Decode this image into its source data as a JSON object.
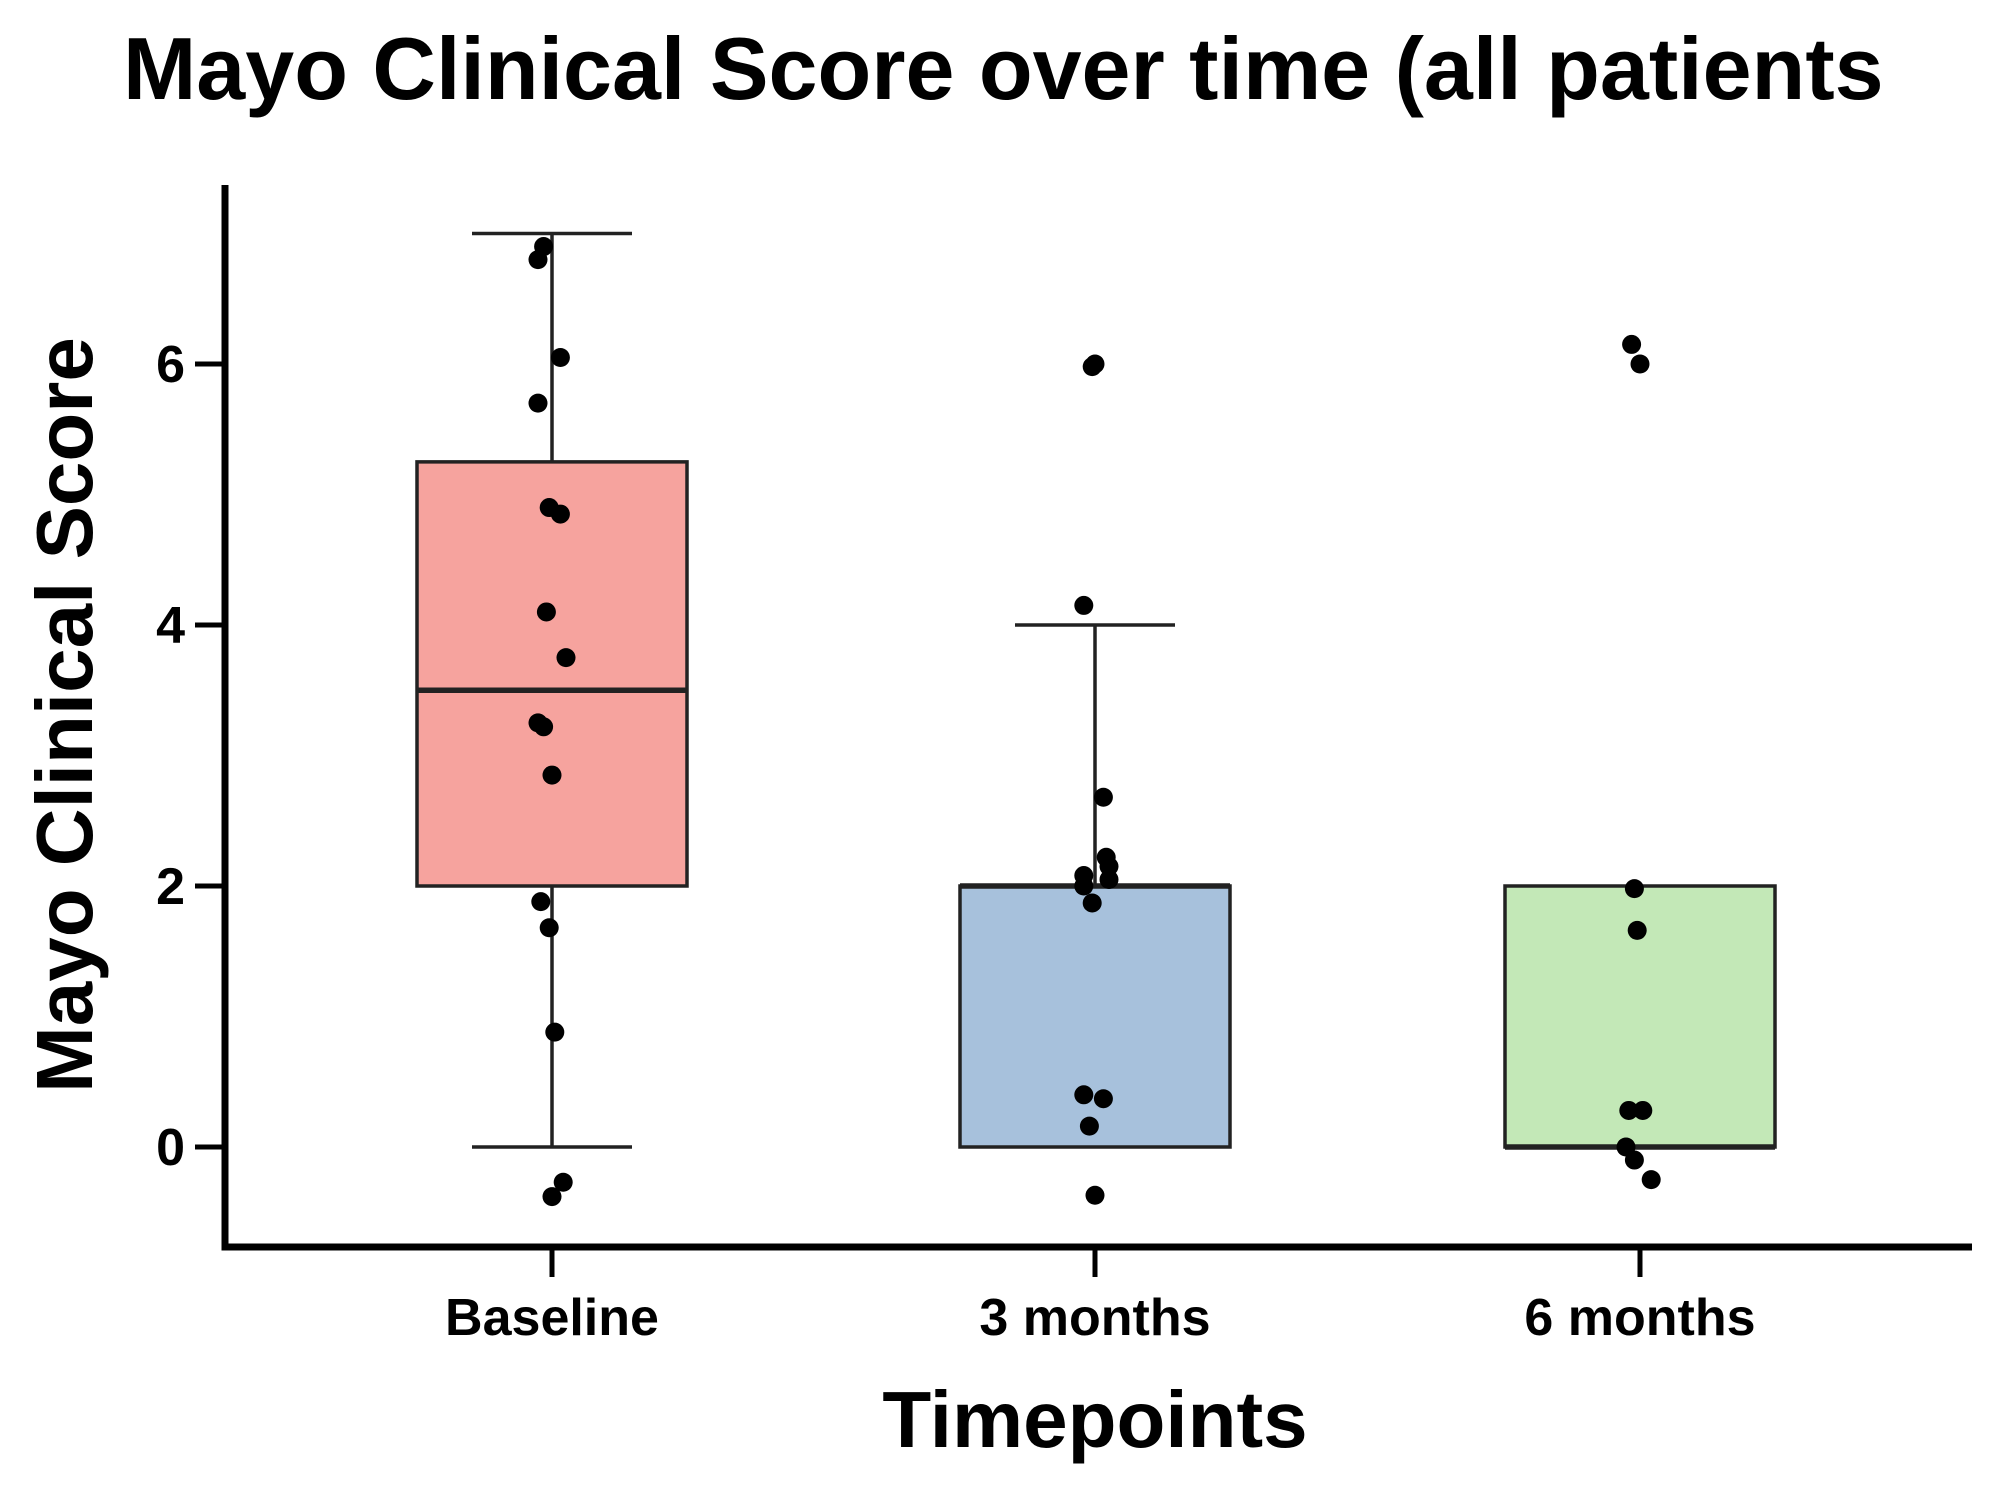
{
  "chart_data": {
    "type": "box",
    "title": "Mayo Clinical Score over time (all patients",
    "xlabel": "Timepoints",
    "ylabel": "Mayo Clinical Score",
    "ylim": [
      -0.75,
      7.4
    ],
    "yticks": [
      0,
      2,
      4,
      6
    ],
    "categories": [
      "Baseline",
      "3 months",
      "6 months"
    ],
    "colors": [
      "#f6a39e",
      "#a7c1dc",
      "#c3e8b7"
    ],
    "boxes": [
      {
        "category": "Baseline",
        "min": 0,
        "q1": 2,
        "median": 3.5,
        "q3": 5.25,
        "max": 7
      },
      {
        "category": "3 months",
        "min": 0,
        "q1": 0,
        "median": 2,
        "q3": 2,
        "max": 4
      },
      {
        "category": "6 months",
        "min": 0,
        "q1": 0,
        "median": 0,
        "q3": 2,
        "max": 2
      }
    ],
    "points": [
      [
        {
          "x": -0.03,
          "y": 6.9
        },
        {
          "x": -0.05,
          "y": 6.8
        },
        {
          "x": 0.03,
          "y": 6.05
        },
        {
          "x": -0.05,
          "y": 5.7
        },
        {
          "x": -0.01,
          "y": 4.9
        },
        {
          "x": 0.03,
          "y": 4.85
        },
        {
          "x": -0.02,
          "y": 4.1
        },
        {
          "x": 0.05,
          "y": 3.75
        },
        {
          "x": -0.05,
          "y": 3.25
        },
        {
          "x": -0.03,
          "y": 3.22
        },
        {
          "x": 0.0,
          "y": 2.85
        },
        {
          "x": -0.04,
          "y": 1.88
        },
        {
          "x": -0.01,
          "y": 1.68
        },
        {
          "x": 0.01,
          "y": 0.88
        },
        {
          "x": 0.04,
          "y": -0.27
        },
        {
          "x": 0.0,
          "y": -0.38
        }
      ],
      [
        {
          "x": -0.01,
          "y": 5.98
        },
        {
          "x": 0.0,
          "y": 6.0
        },
        {
          "x": -0.04,
          "y": 4.15
        },
        {
          "x": 0.03,
          "y": 2.68
        },
        {
          "x": 0.04,
          "y": 2.22
        },
        {
          "x": 0.05,
          "y": 2.15
        },
        {
          "x": -0.04,
          "y": 2.08
        },
        {
          "x": 0.05,
          "y": 2.05
        },
        {
          "x": -0.04,
          "y": 2.0
        },
        {
          "x": -0.01,
          "y": 1.87
        },
        {
          "x": -0.04,
          "y": 0.4
        },
        {
          "x": 0.03,
          "y": 0.37
        },
        {
          "x": -0.02,
          "y": 0.16
        },
        {
          "x": 0.0,
          "y": -0.37
        }
      ],
      [
        {
          "x": -0.03,
          "y": 6.15
        },
        {
          "x": 0.0,
          "y": 6.0
        },
        {
          "x": -0.02,
          "y": 1.98
        },
        {
          "x": -0.01,
          "y": 1.66
        },
        {
          "x": -0.04,
          "y": 0.28
        },
        {
          "x": 0.01,
          "y": 0.28
        },
        {
          "x": -0.05,
          "y": 0.0
        },
        {
          "x": -0.02,
          "y": -0.1
        },
        {
          "x": 0.04,
          "y": -0.25
        }
      ]
    ]
  }
}
